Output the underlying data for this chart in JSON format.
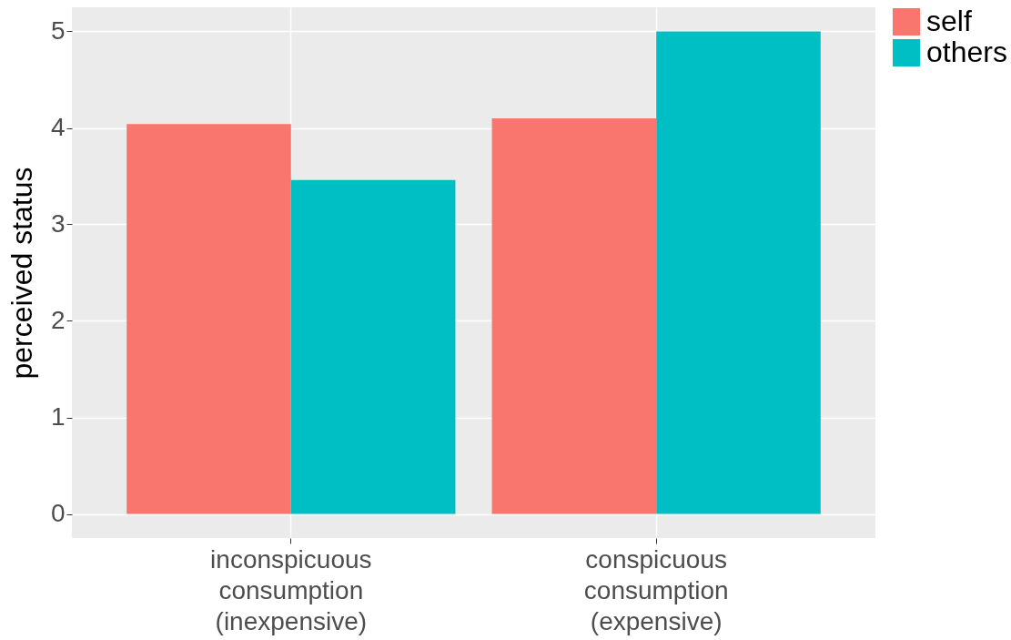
{
  "chart_data": {
    "type": "bar",
    "ylabel": "perceived status",
    "categories": [
      "inconspicuous\nconsumption\n(inexpensive)",
      "conspicuous\nconsumption\n(expensive)"
    ],
    "series": [
      {
        "name": "self",
        "color": "#f8766d",
        "values": [
          4.04,
          4.1
        ]
      },
      {
        "name": "others",
        "color": "#00bfc4",
        "values": [
          3.46,
          5.0
        ]
      }
    ],
    "ylim": [
      -0.25,
      5.25
    ],
    "yticks": [
      0,
      1,
      2,
      3,
      4,
      5
    ],
    "grid": true,
    "legend": "right"
  }
}
